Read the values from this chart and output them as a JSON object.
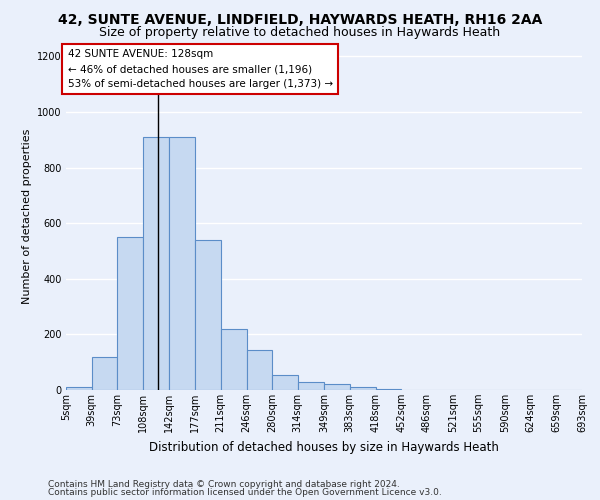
{
  "title1": "42, SUNTE AVENUE, LINDFIELD, HAYWARDS HEATH, RH16 2AA",
  "title2": "Size of property relative to detached houses in Haywards Heath",
  "xlabel": "Distribution of detached houses by size in Haywards Heath",
  "ylabel": "Number of detached properties",
  "footnote1": "Contains HM Land Registry data © Crown copyright and database right 2024.",
  "footnote2": "Contains public sector information licensed under the Open Government Licence v3.0.",
  "bar_edges": [
    5,
    39,
    73,
    108,
    142,
    177,
    211,
    246,
    280,
    314,
    349,
    383,
    418,
    452,
    486,
    521,
    555,
    590,
    624,
    659,
    693
  ],
  "bar_heights": [
    10,
    120,
    550,
    910,
    910,
    540,
    220,
    145,
    55,
    30,
    20,
    10,
    5,
    0,
    0,
    0,
    0,
    0,
    0,
    0
  ],
  "bar_color": "#c6d9f1",
  "bar_edge_color": "#5b8dc8",
  "bar_linewidth": 0.8,
  "background_color": "#eaf0fb",
  "grid_color": "#ffffff",
  "ylim": [
    0,
    1250
  ],
  "yticks": [
    0,
    200,
    400,
    600,
    800,
    1000,
    1200
  ],
  "property_size": 128,
  "annotation_text1": "42 SUNTE AVENUE: 128sqm",
  "annotation_text2": "← 46% of detached houses are smaller (1,196)",
  "annotation_text3": "53% of semi-detached houses are larger (1,373) →",
  "annotation_box_color": "#ffffff",
  "annotation_border_color": "#cc0000",
  "vline_color": "#000000",
  "title1_fontsize": 10,
  "title2_fontsize": 9,
  "tick_fontsize": 7,
  "ylabel_fontsize": 8,
  "xlabel_fontsize": 8.5,
  "footnote_fontsize": 6.5,
  "annotation_fontsize": 7.5
}
